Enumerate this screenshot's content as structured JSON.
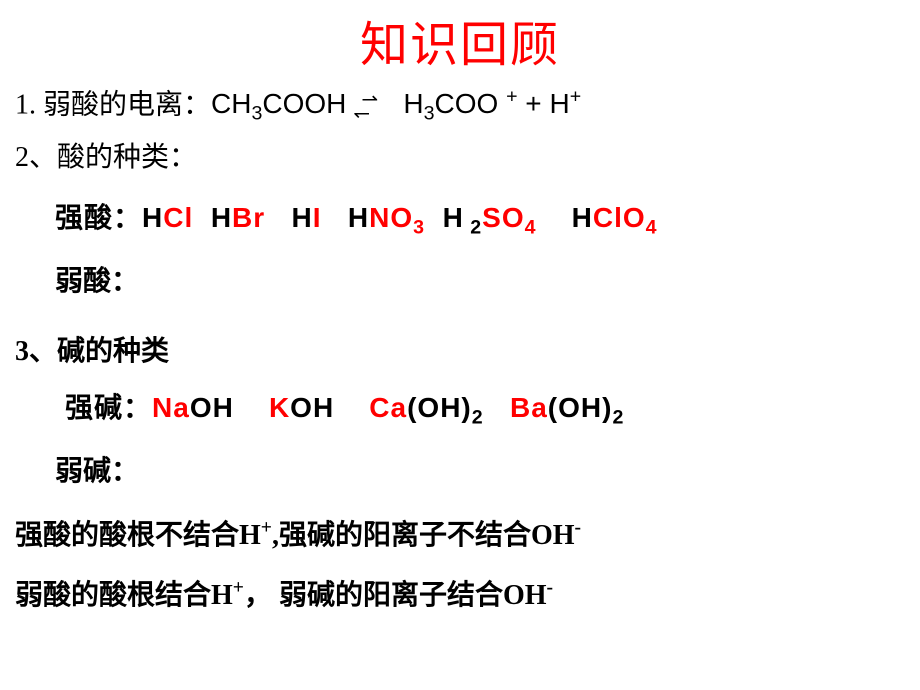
{
  "title": "知识回顾",
  "line1": {
    "prefix": "1. 弱酸的电离：",
    "formula_left_ch": "CH",
    "formula_left_sub": "3",
    "formula_left_cooh": "COOH",
    "formula_right_h": "H",
    "formula_right_sub": "3",
    "formula_right_coo": "COO",
    "formula_right_plus1": "+",
    "formula_plus": " + ",
    "formula_h": "H",
    "formula_h_sup": "+"
  },
  "line2": {
    "text": "2、酸的种类："
  },
  "strong_acid": {
    "label": "强酸：",
    "h1": "H",
    "cl": "Cl",
    "h2": "H",
    "br": "Br",
    "h3": "H",
    "i": "I",
    "h4": "H",
    "no": "NO",
    "no_sub": "3",
    "h5": "H",
    "h5_sub": " 2",
    "so": "SO",
    "so_sub": "4",
    "h6": "H",
    "clo": "ClO",
    "clo_sub": "4"
  },
  "weak_acid": {
    "label": "弱酸："
  },
  "line3": {
    "text": "3、碱的种类"
  },
  "strong_base": {
    "label": "强碱：",
    "na": "Na",
    "oh1": "OH",
    "k": "K",
    "oh2": "OH",
    "ca": "Ca",
    "oh3_open": "(OH)",
    "oh3_sub": "2",
    "ba": "Ba",
    "oh4_open": "(OH)",
    "oh4_sub": "2"
  },
  "weak_base": {
    "label": "弱碱："
  },
  "conclusion1": {
    "part1": "强酸的酸根不结合H",
    "sup1": "+",
    "part2": ",强碱的阳离子不结合OH",
    "sup2": "-"
  },
  "conclusion2": {
    "part1": "弱酸的酸根结合H",
    "sup1": "+",
    "part2": "，  弱碱的阳离子结合OH",
    "sup2": "-"
  },
  "colors": {
    "title": "#ff0000",
    "text": "#000000",
    "highlight": "#ff0000",
    "background": "#ffffff"
  },
  "typography": {
    "title_fontsize": 48,
    "body_fontsize": 28,
    "title_font": "KaiTi",
    "body_font": "SimSun"
  }
}
